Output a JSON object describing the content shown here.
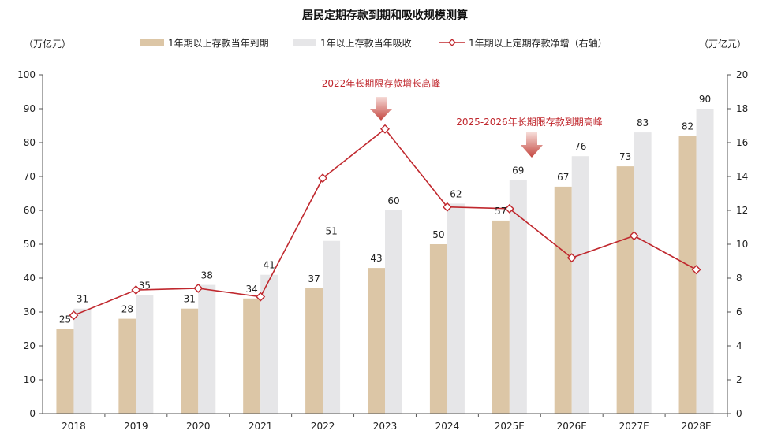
{
  "chart_data": {
    "type": "bar",
    "title": "居民定期存款到期和吸收规模测算",
    "left_unit": "（万亿元）",
    "right_unit": "（万亿元）",
    "categories": [
      "2018",
      "2019",
      "2020",
      "2021",
      "2022",
      "2023",
      "2024",
      "2025E",
      "2026E",
      "2027E",
      "2028E"
    ],
    "ylim": [
      0,
      100
    ],
    "ytick_step": 10,
    "y2lim": [
      0,
      20
    ],
    "y2tick_step": 2,
    "series": [
      {
        "name": "1年期以上存款当年到期",
        "kind": "bar",
        "color": "#dcc6a6",
        "values": [
          25,
          28,
          31,
          34,
          37,
          43,
          50,
          57,
          67,
          73,
          82
        ]
      },
      {
        "name": "1年以上存款当年吸收",
        "kind": "bar",
        "color": "#e6e6e8",
        "values": [
          31,
          35,
          38,
          41,
          51,
          60,
          62,
          69,
          76,
          83,
          90
        ]
      },
      {
        "name": "1年期以上定期存款净增（右轴）",
        "kind": "line",
        "axis": "right",
        "color": "#c0282e",
        "values": [
          5.8,
          7.3,
          7.4,
          6.9,
          13.9,
          16.8,
          12.2,
          12.1,
          9.2,
          10.5,
          8.5
        ]
      }
    ],
    "annotations": [
      {
        "text": "2022年长期限存款增长高峰",
        "category": "2023"
      },
      {
        "text": "2025-2026年长期限存款到期高峰",
        "category": "2025E"
      }
    ]
  }
}
